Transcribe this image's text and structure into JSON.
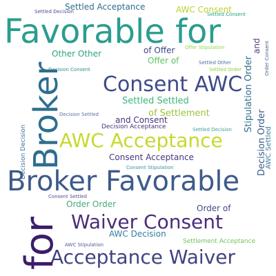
{
  "words": [
    {
      "text": "Favorable for",
      "color": "#2a9d8f"
    },
    {
      "text": "Broker",
      "color": "#2d6e8e"
    },
    {
      "text": "for",
      "color": "#3b1d6b"
    },
    {
      "text": "Broker Favorable",
      "color": "#3d5a8a"
    },
    {
      "text": "Consent AWC",
      "color": "#3e4a89"
    },
    {
      "text": "AWC Acceptance",
      "color": "#c8d82c"
    },
    {
      "text": "Waiver Consent",
      "color": "#4a2c7a"
    },
    {
      "text": "Acceptance Waiver",
      "color": "#40437e"
    },
    {
      "text": "Settled Acceptance",
      "color": "#2f6b8e"
    },
    {
      "text": "Settled Decision",
      "color": "#4f4a8c"
    },
    {
      "text": "AWC Consent",
      "color": "#b9d32b"
    },
    {
      "text": "Settled Consent",
      "color": "#1fa187"
    },
    {
      "text": "Other Other",
      "color": "#2ea083"
    },
    {
      "text": "of Offer",
      "color": "#3d4386"
    },
    {
      "text": "Offer of",
      "color": "#5cc35f"
    },
    {
      "text": "Offer Stipulation",
      "color": "#8fd744"
    },
    {
      "text": "Decision Consent",
      "color": "#2c8d8b"
    },
    {
      "text": "Settled Settled",
      "color": "#3ab77a"
    },
    {
      "text": "Settled Other",
      "color": "#4c6ea0"
    },
    {
      "text": "Settled Order",
      "color": "#8fcf3a"
    },
    {
      "text": "of Settlement",
      "color": "#9cc239"
    },
    {
      "text": "and Consent",
      "color": "#48327a"
    },
    {
      "text": "Decision Settled",
      "color": "#5a6ea8"
    },
    {
      "text": "Decision Acceptance",
      "color": "#46337a"
    },
    {
      "text": "Settled Decision",
      "color": "#3a9c9a"
    },
    {
      "text": "Consent Acceptance",
      "color": "#45357d"
    },
    {
      "text": "Consent Stipulation",
      "color": "#3a8fa0"
    },
    {
      "text": "Consent Settled",
      "color": "#5a4a8c"
    },
    {
      "text": "Order Order",
      "color": "#46a87e"
    },
    {
      "text": "Order of",
      "color": "#3f4a85"
    },
    {
      "text": "AWC Decision",
      "color": "#2f7fa0"
    },
    {
      "text": "AWC Stipulation",
      "color": "#4d5f8f"
    },
    {
      "text": "Settlement Acceptance",
      "color": "#6bc45a"
    },
    {
      "text": "Stipulation Order",
      "color": "#2f6e8e"
    },
    {
      "text": "Decision Order",
      "color": "#3a5a8c"
    },
    {
      "text": "AWC Settled",
      "color": "#3a7aa0"
    },
    {
      "text": "Order Consent",
      "color": "#455e8a"
    },
    {
      "text": "and",
      "color": "#4d3a7e"
    },
    {
      "text": "Decision Decision",
      "color": "#3c6e98"
    }
  ]
}
